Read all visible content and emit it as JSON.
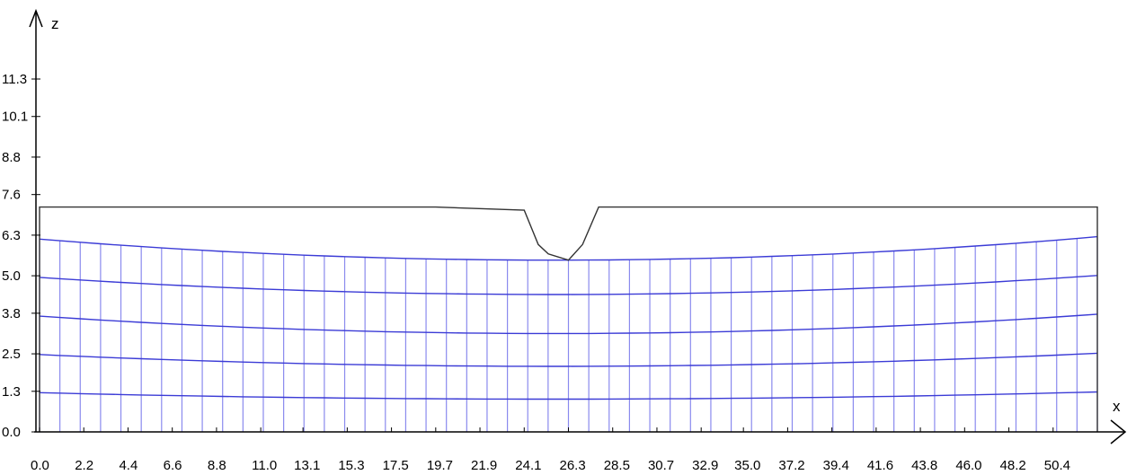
{
  "chart_data": {
    "type": "line",
    "description_type": "finite-element mesh under surface profile",
    "xlabel": "x",
    "ylabel": "z",
    "xlim": [
      0.0,
      52.6
    ],
    "ylim": [
      0.0,
      12.6
    ],
    "x_ticks": [
      "0.0",
      "2.2",
      "4.4",
      "6.6",
      "8.8",
      "11.0",
      "13.1",
      "15.3",
      "17.5",
      "19.7",
      "21.9",
      "24.1",
      "26.3",
      "28.5",
      "30.7",
      "32.9",
      "35.0",
      "37.2",
      "39.4",
      "41.6",
      "43.8",
      "46.0",
      "48.2",
      "50.4"
    ],
    "x_tick_values": [
      0.0,
      2.2,
      4.4,
      6.6,
      8.8,
      11.0,
      13.1,
      15.3,
      17.5,
      19.7,
      21.9,
      24.1,
      26.3,
      28.5,
      30.7,
      32.9,
      35.0,
      37.2,
      39.4,
      41.6,
      43.8,
      46.0,
      48.2,
      50.4
    ],
    "y_ticks": [
      "0.0",
      "1.3",
      "2.5",
      "3.8",
      "5.0",
      "6.3",
      "7.6",
      "8.8",
      "10.1",
      "11.3"
    ],
    "y_tick_values": [
      0.0,
      1.3,
      2.5,
      3.8,
      5.0,
      6.3,
      7.6,
      8.8,
      10.1,
      11.3
    ],
    "outline": {
      "color": "#333333",
      "x": [
        0.0,
        0.0,
        19.7,
        24.1,
        24.8,
        25.3,
        26.3,
        27.0,
        27.8,
        33.3,
        52.6,
        52.6
      ],
      "z": [
        0.0,
        7.2,
        7.2,
        7.1,
        6.0,
        5.7,
        5.5,
        6.0,
        7.2,
        7.2,
        7.2,
        0.0
      ]
    },
    "mesh": {
      "color": "#3b3bd6",
      "vertical_color": "#8a8aee",
      "columns": 53,
      "layers": [
        {
          "edge_z": 1.28,
          "center_z": 1.05
        },
        {
          "edge_z": 2.52,
          "center_z": 2.1
        },
        {
          "edge_z": 3.77,
          "center_z": 3.15
        },
        {
          "edge_z": 5.01,
          "center_z": 4.4
        },
        {
          "edge_z": 6.25,
          "center_z": 5.5
        }
      ]
    }
  }
}
